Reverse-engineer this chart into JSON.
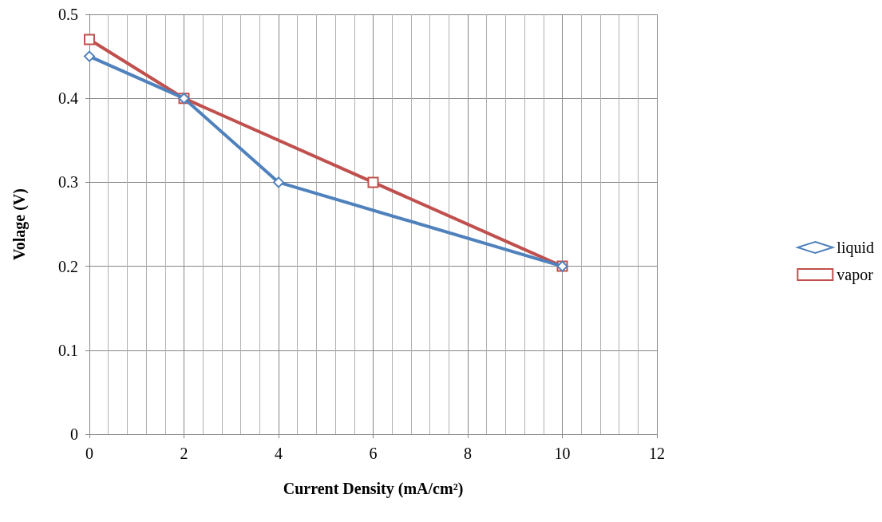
{
  "chart_data": {
    "type": "line",
    "xlabel": "Current Density (mA/cm²)",
    "ylabel": "Volage (V)",
    "xlim": [
      0,
      12
    ],
    "xticks": [
      0,
      2,
      4,
      6,
      8,
      10,
      12
    ],
    "ylim": [
      0,
      0.5
    ],
    "yticks": [
      0,
      0.1,
      0.2,
      0.3,
      0.4,
      0.5
    ],
    "grid": true,
    "legend": "right",
    "series": [
      {
        "name": "liquid",
        "color": "#4f81bd",
        "marker": "diamond",
        "x": [
          0,
          2,
          4,
          10
        ],
        "values": [
          0.45,
          0.4,
          0.3,
          0.2
        ]
      },
      {
        "name": "vapor",
        "color": "#c0504d",
        "marker": "square",
        "x": [
          0,
          2,
          6,
          10
        ],
        "values": [
          0.47,
          0.4,
          0.3,
          0.2
        ]
      }
    ]
  }
}
